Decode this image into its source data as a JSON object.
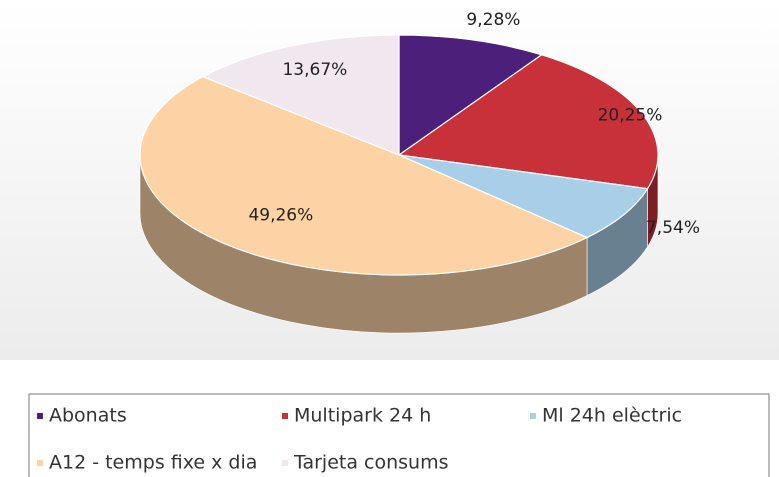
{
  "chart_data": {
    "type": "pie",
    "categories": [
      "Abonats",
      "Multipark 24 h",
      "Ml 24h elèctric",
      "A12 - temps fixe x dia",
      "Tarjeta consums"
    ],
    "values": [
      9.28,
      20.25,
      7.54,
      49.26,
      13.67
    ],
    "value_labels": [
      "9,28%",
      "20,25%",
      "7,54%",
      "49,26%",
      "13,67%"
    ],
    "colors": [
      "#4b1f7a",
      "#c8303a",
      "#a9cfe8",
      "#fdd3a6",
      "#f1e7ef"
    ],
    "legend": "bottom"
  }
}
